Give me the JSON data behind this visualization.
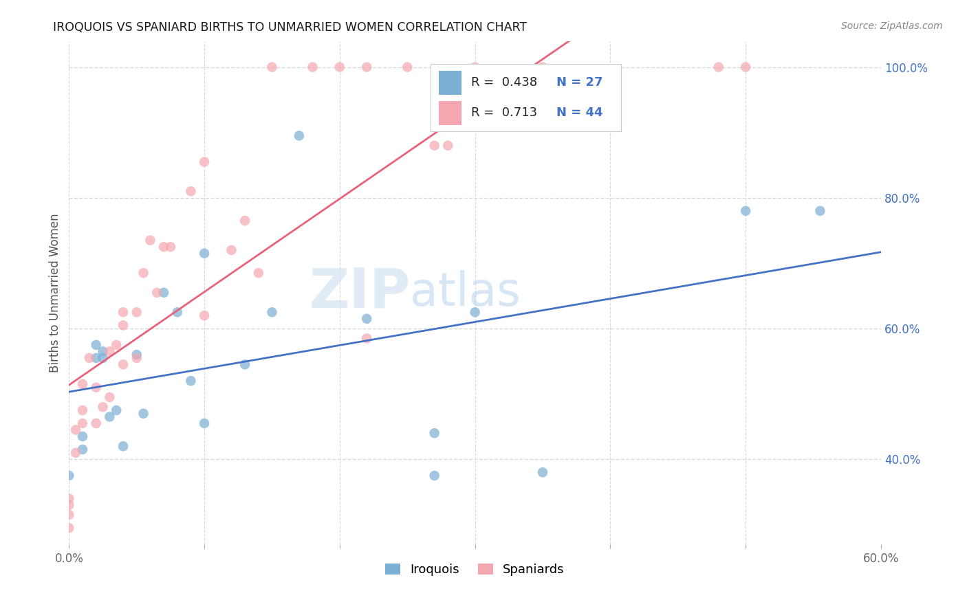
{
  "title": "IROQUOIS VS SPANIARD BIRTHS TO UNMARRIED WOMEN CORRELATION CHART",
  "source": "Source: ZipAtlas.com",
  "ylabel": "Births to Unmarried Women",
  "xlim": [
    0.0,
    0.6
  ],
  "ylim": [
    0.27,
    1.04
  ],
  "watermark_zip": "ZIP",
  "watermark_atlas": "atlas",
  "iroquois_x": [
    0.0,
    0.01,
    0.01,
    0.02,
    0.02,
    0.025,
    0.025,
    0.03,
    0.035,
    0.04,
    0.05,
    0.055,
    0.07,
    0.08,
    0.09,
    0.1,
    0.1,
    0.13,
    0.15,
    0.17,
    0.22,
    0.27,
    0.27,
    0.3,
    0.35,
    0.5,
    0.555
  ],
  "iroquois_y": [
    0.375,
    0.435,
    0.415,
    0.555,
    0.575,
    0.565,
    0.555,
    0.465,
    0.475,
    0.42,
    0.56,
    0.47,
    0.655,
    0.625,
    0.52,
    0.455,
    0.715,
    0.545,
    0.625,
    0.895,
    0.615,
    0.44,
    0.375,
    0.625,
    0.38,
    0.78,
    0.78
  ],
  "spaniard_x": [
    0.0,
    0.0,
    0.0,
    0.0,
    0.005,
    0.005,
    0.01,
    0.01,
    0.01,
    0.015,
    0.02,
    0.02,
    0.025,
    0.03,
    0.03,
    0.035,
    0.04,
    0.04,
    0.04,
    0.05,
    0.05,
    0.055,
    0.06,
    0.065,
    0.07,
    0.075,
    0.09,
    0.1,
    0.1,
    0.12,
    0.13,
    0.14,
    0.15,
    0.18,
    0.2,
    0.22,
    0.22,
    0.25,
    0.27,
    0.28,
    0.3,
    0.35,
    0.48,
    0.5
  ],
  "spaniard_y": [
    0.34,
    0.33,
    0.315,
    0.295,
    0.41,
    0.445,
    0.455,
    0.475,
    0.515,
    0.555,
    0.455,
    0.51,
    0.48,
    0.495,
    0.565,
    0.575,
    0.625,
    0.605,
    0.545,
    0.555,
    0.625,
    0.685,
    0.735,
    0.655,
    0.725,
    0.725,
    0.81,
    0.855,
    0.62,
    0.72,
    0.765,
    0.685,
    1.0,
    1.0,
    1.0,
    1.0,
    0.585,
    1.0,
    0.88,
    0.88,
    1.0,
    1.0,
    1.0,
    1.0
  ],
  "iroquois_color": "#7BAFD4",
  "spaniard_color": "#F4A7B0",
  "iroquois_line_color": "#4472C4",
  "spaniard_line_color": "#E8637A",
  "R_iroquois": "0.438",
  "N_iroquois": "27",
  "R_spaniard": "0.713",
  "N_spaniard": "44",
  "legend_label_iroquois": "Iroquois",
  "legend_label_spaniard": "Spaniards",
  "background_color": "#ffffff",
  "grid_color": "#d9d9d9",
  "right_tick_color": "#4472C4"
}
